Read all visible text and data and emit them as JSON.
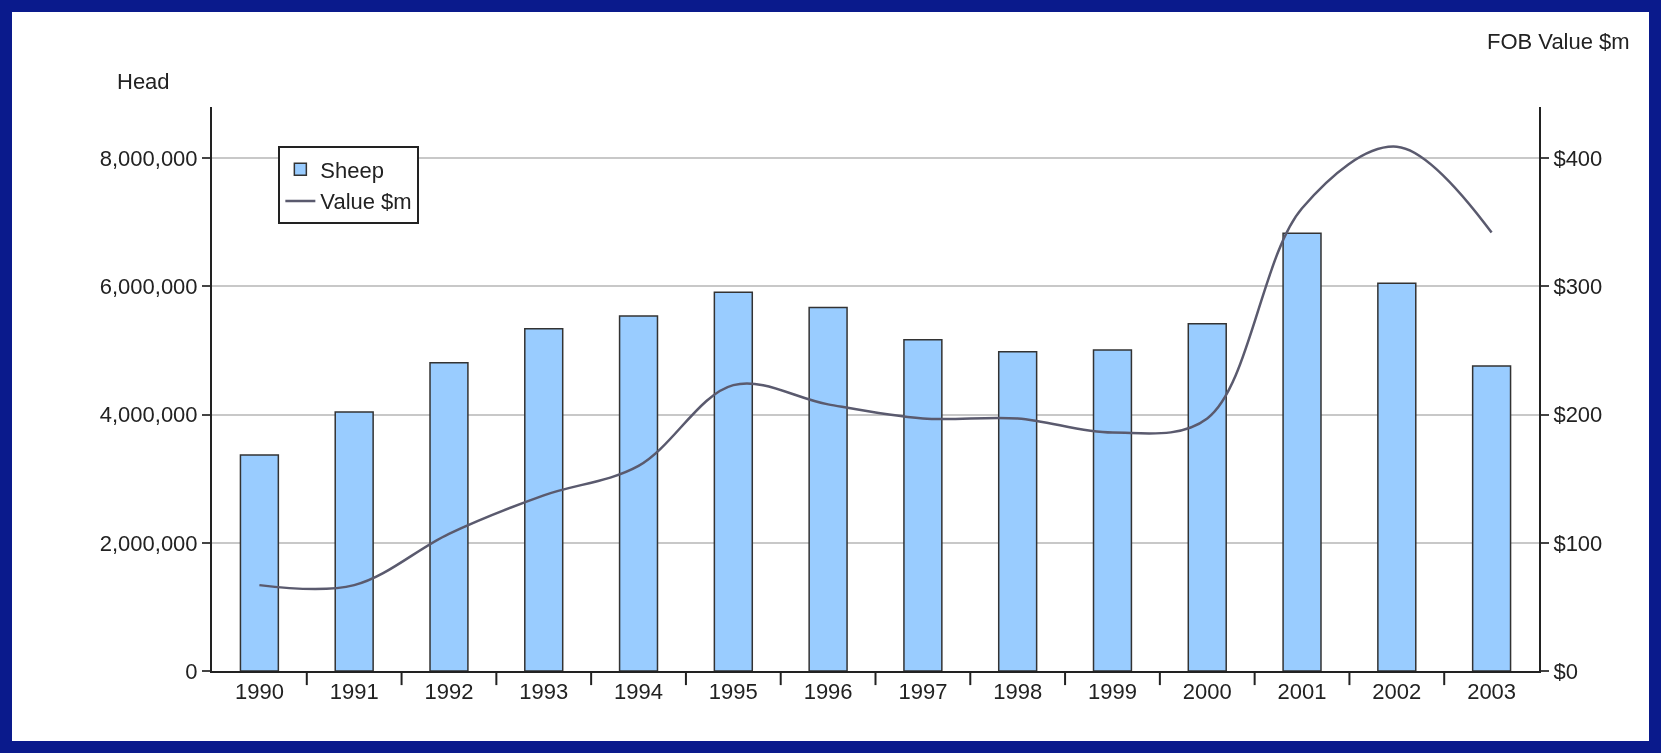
{
  "chart_data": {
    "type": "bar",
    "ylabel": "Head",
    "y2label": "FOB Value $m",
    "categories": [
      "1990",
      "1991",
      "1992",
      "1993",
      "1994",
      "1995",
      "1996",
      "1997",
      "1998",
      "1999",
      "2000",
      "2001",
      "2002",
      "2003"
    ],
    "series": [
      {
        "name": "Sheep",
        "color": "#99ccff",
        "values": [
          3370000,
          4040000,
          4810000,
          5340000,
          5540000,
          5910000,
          5670000,
          5170000,
          4980000,
          5010000,
          5420000,
          6830000,
          6050000,
          4760000
        ]
      },
      {
        "name": "Value $m",
        "type": "line",
        "axis": "y2",
        "color": "#5a5a6e",
        "values": [
          67,
          67,
          107,
          137,
          160,
          223,
          208,
          197,
          197,
          186,
          197,
          361,
          409,
          342
        ]
      }
    ],
    "ylim": [
      0,
      8800000
    ],
    "yticks": [
      {
        "value": 0,
        "label": "0"
      },
      {
        "value": 2000000,
        "label": "2,000,000"
      },
      {
        "value": 4000000,
        "label": "4,000,000"
      },
      {
        "value": 6000000,
        "label": "6,000,000"
      },
      {
        "value": 8000000,
        "label": "8,000,000"
      }
    ],
    "y2lim": [
      0,
      440
    ],
    "y2ticks": [
      {
        "value": 0,
        "label": "$0"
      },
      {
        "value": 100,
        "label": "$100"
      },
      {
        "value": 200,
        "label": "$200"
      },
      {
        "value": 300,
        "label": "$300"
      },
      {
        "value": 400,
        "label": "$400"
      }
    ],
    "grid": "y",
    "legend": "top left",
    "marker": "none",
    "line_style": "solid"
  }
}
